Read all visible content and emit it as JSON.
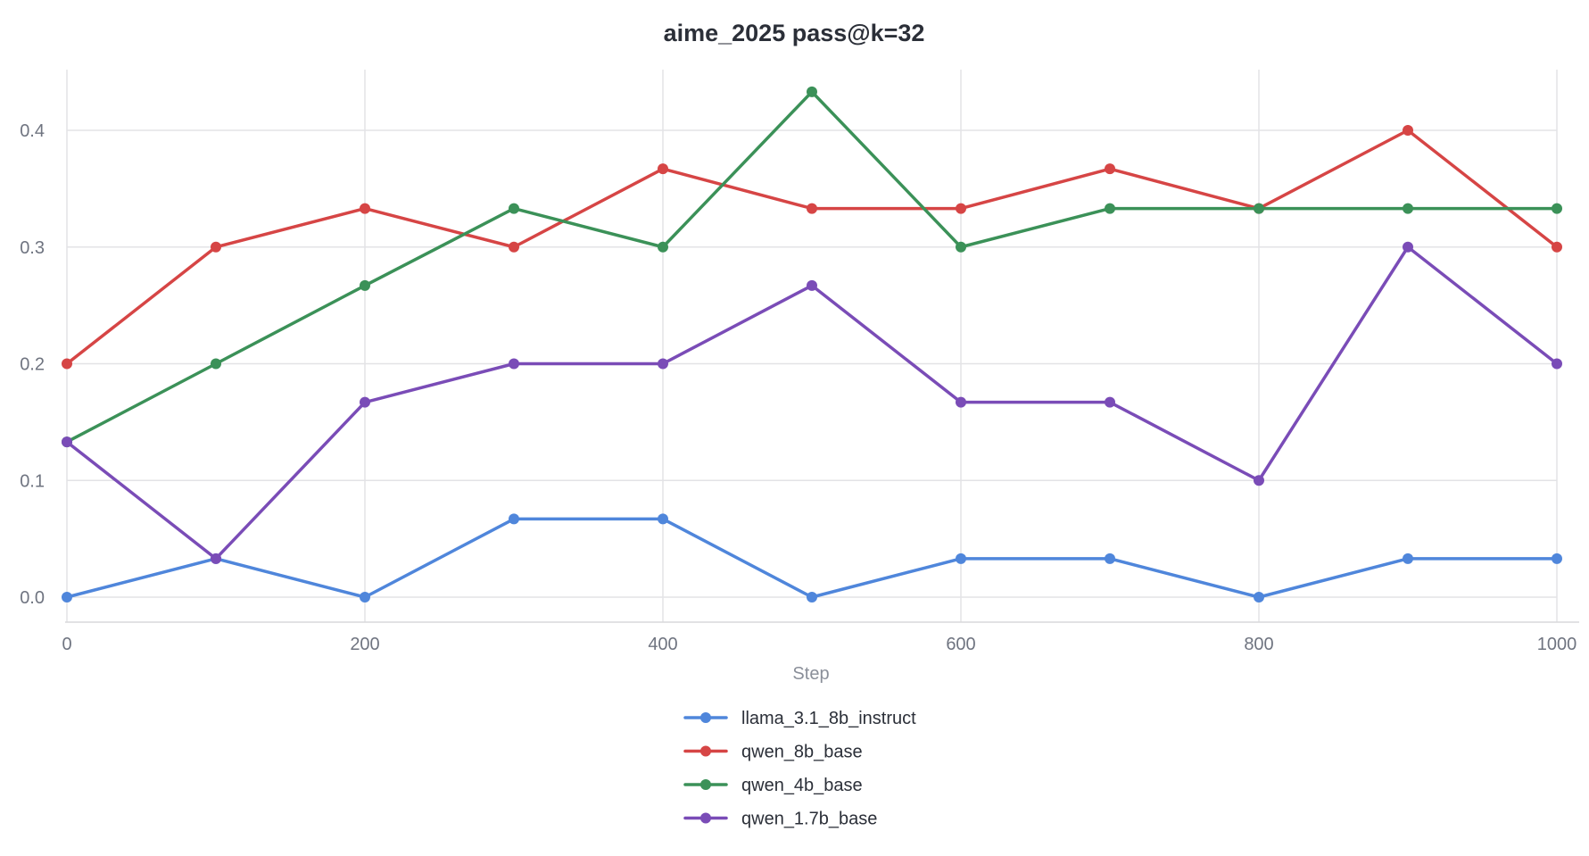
{
  "chart_data": {
    "type": "line",
    "title": "aime_2025 pass@k=32",
    "xlabel": "Step",
    "ylabel": "",
    "x": [
      0,
      100,
      200,
      300,
      400,
      500,
      600,
      700,
      800,
      900,
      1000
    ],
    "xlim": [
      0,
      1000
    ],
    "ylim": [
      -0.02,
      0.45
    ],
    "xticks": [
      "0",
      "200",
      "400",
      "600",
      "800",
      "1000"
    ],
    "xtick_values": [
      0,
      200,
      400,
      600,
      800,
      1000
    ],
    "yticks": [
      "0.0",
      "0.1",
      "0.2",
      "0.3",
      "0.4"
    ],
    "ytick_values": [
      0.0,
      0.1,
      0.2,
      0.3,
      0.4
    ],
    "grid": true,
    "legend_position": "bottom-center",
    "series": [
      {
        "name": "llama_3.1_8b_instruct",
        "color": "#4f86db",
        "values": [
          0.0,
          0.033,
          0.0,
          0.067,
          0.067,
          0.0,
          0.033,
          0.033,
          0.0,
          0.033,
          0.033
        ]
      },
      {
        "name": "qwen_8b_base",
        "color": "#d64545",
        "values": [
          0.2,
          0.3,
          0.333,
          0.3,
          0.367,
          0.333,
          0.333,
          0.367,
          0.333,
          0.4,
          0.3
        ]
      },
      {
        "name": "qwen_4b_base",
        "color": "#3b9158",
        "values": [
          0.133,
          0.2,
          0.267,
          0.333,
          0.3,
          0.433,
          0.3,
          0.333,
          0.333,
          0.333,
          0.333
        ]
      },
      {
        "name": "qwen_1.7b_base",
        "color": "#7a4cb7",
        "values": [
          0.133,
          0.033,
          0.167,
          0.2,
          0.2,
          0.267,
          0.167,
          0.167,
          0.1,
          0.3,
          0.2
        ]
      }
    ]
  }
}
